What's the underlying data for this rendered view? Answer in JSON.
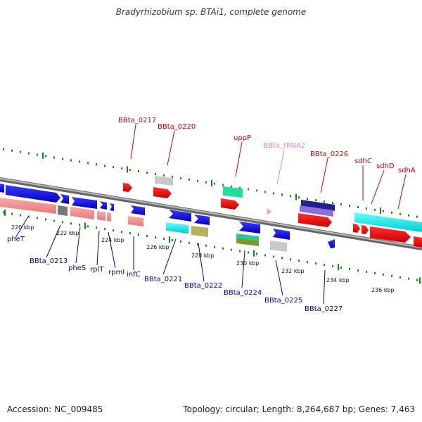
{
  "title": "Bradyrhizobium sp. BTAi1, complete genome",
  "footer": {
    "accession": "Accession: NC_009485",
    "summary": "Topology: circular; Length: 8,264,687 bp; Genes: 7,463"
  },
  "colors": {
    "upper_label": "#cc0000",
    "lower_label": "#0000aa",
    "trna_label": "#ee82b4",
    "dots": "#118811",
    "backbone": "#888888"
  },
  "ticks": [
    "220 kbp",
    "222 kbp",
    "224 kbp",
    "226 kbp",
    "228 kbp",
    "230 kbp",
    "232 kbp",
    "234 kbp",
    "236 kbp"
  ],
  "upper_labels": [
    "BBta_0217",
    "BBta_0220",
    "uppP",
    "BBta_tRNA2",
    "BBta_0226",
    "sdhC",
    "sdhD",
    "sdhA"
  ],
  "lower_labels": [
    "pheT",
    "BBta_0213",
    "pheS",
    "rplT",
    "rpmI",
    "infC",
    "BBta_0221",
    "BBta_0222",
    "BBta_0224",
    "BBta_0225",
    "BBta_0227"
  ]
}
